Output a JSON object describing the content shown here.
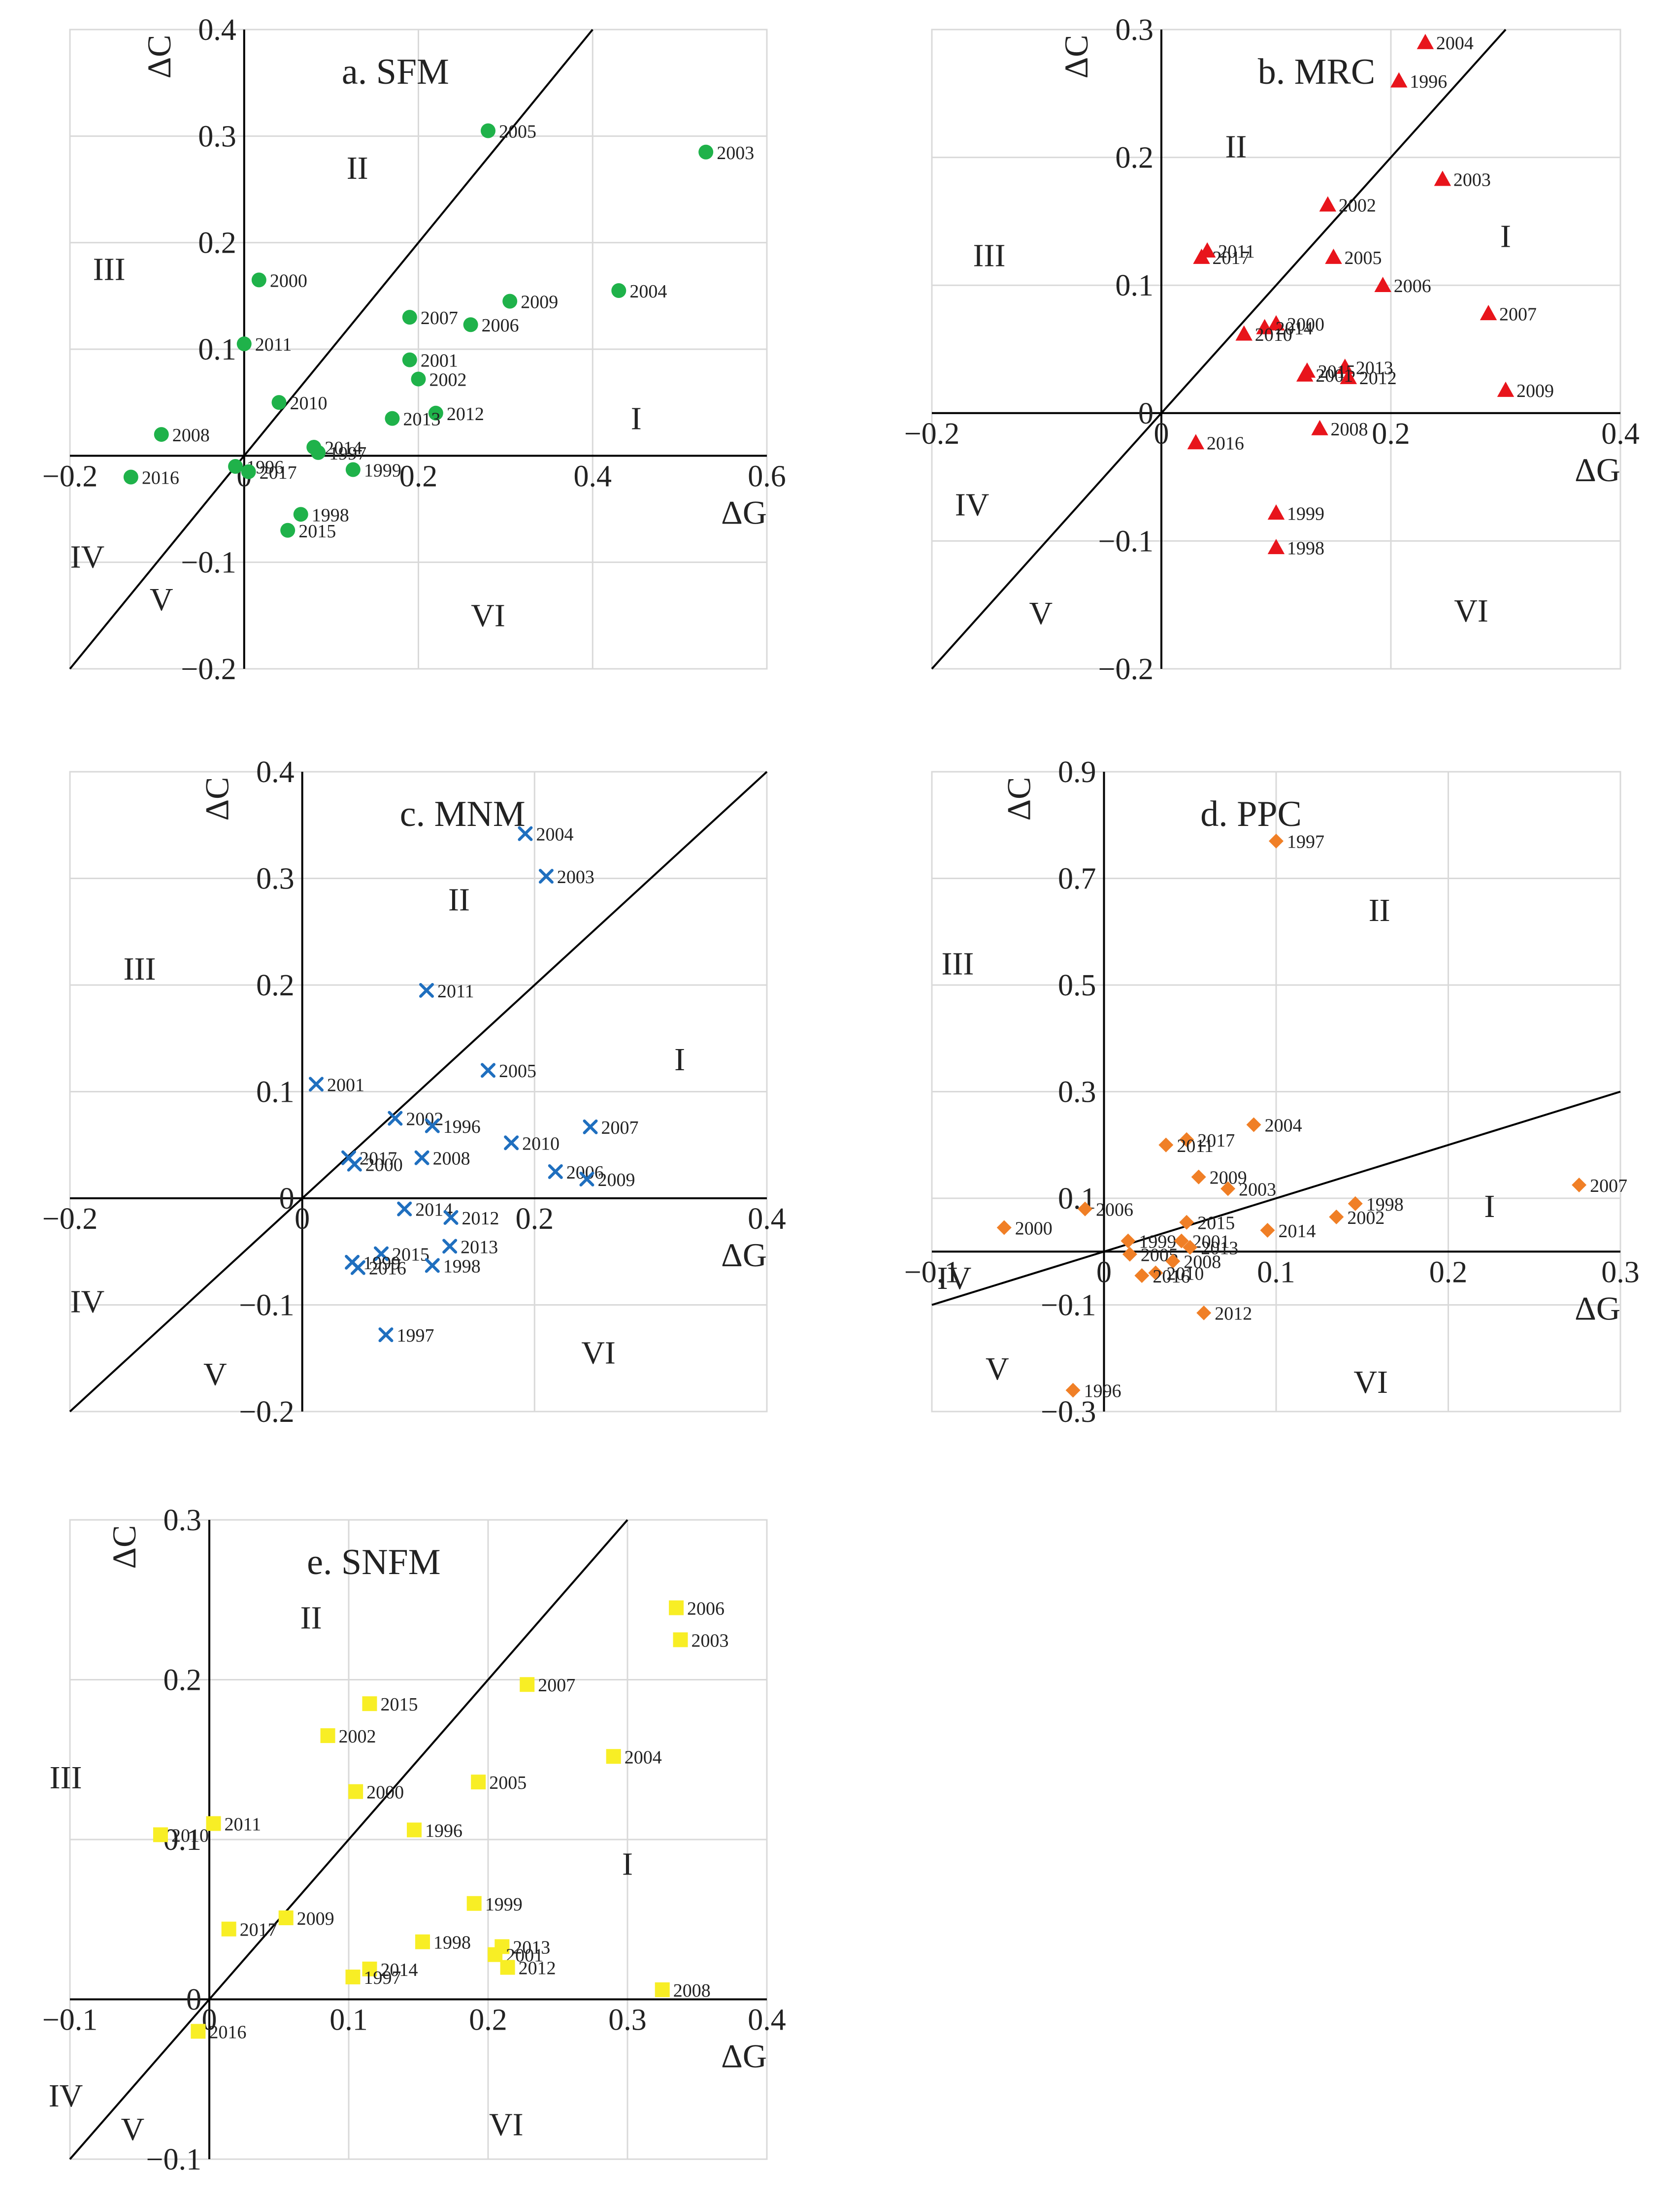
{
  "chart_data": [
    {
      "id": "a",
      "type": "scatter",
      "title": "a. SFM",
      "xlabel": "ΔG",
      "ylabel": "ΔC",
      "xlim": [
        -0.2,
        0.6
      ],
      "ylim": [
        -0.2,
        0.4
      ],
      "xticks": [
        -0.2,
        0,
        0.2,
        0.4,
        0.6
      ],
      "xtick_labels": [
        "−0.2",
        "0",
        "0.2",
        "0.4",
        "0.6"
      ],
      "yticks": [
        -0.2,
        -0.1,
        0.1,
        0.2,
        0.3,
        0.4
      ],
      "ytick_labels": [
        "−0.2",
        "−0.1",
        "0.1",
        "0.2",
        "0.3",
        "0.4"
      ],
      "grid": true,
      "marker": "circle",
      "color": "#1fb24a",
      "diagonal_slope": 1,
      "quadrants": [
        {
          "label": "I",
          "x": 0.45,
          "y": 0.025
        },
        {
          "label": "II",
          "x": 0.13,
          "y": 0.26
        },
        {
          "label": "III",
          "x": -0.155,
          "y": 0.165
        },
        {
          "label": "IV",
          "x": -0.18,
          "y": -0.105
        },
        {
          "label": "V",
          "x": -0.095,
          "y": -0.145
        },
        {
          "label": "VI",
          "x": 0.28,
          "y": -0.16
        }
      ],
      "points": [
        {
          "year": "2003",
          "x": 0.53,
          "y": 0.285
        },
        {
          "year": "2005",
          "x": 0.28,
          "y": 0.305
        },
        {
          "year": "2000",
          "x": 0.017,
          "y": 0.165
        },
        {
          "year": "2011",
          "x": 0.0,
          "y": 0.105
        },
        {
          "year": "2004",
          "x": 0.43,
          "y": 0.155
        },
        {
          "year": "2009",
          "x": 0.305,
          "y": 0.145
        },
        {
          "year": "2007",
          "x": 0.19,
          "y": 0.13
        },
        {
          "year": "2006",
          "x": 0.26,
          "y": 0.123
        },
        {
          "year": "2001",
          "x": 0.19,
          "y": 0.09
        },
        {
          "year": "2002",
          "x": 0.2,
          "y": 0.072
        },
        {
          "year": "2010",
          "x": 0.04,
          "y": 0.05
        },
        {
          "year": "2012",
          "x": 0.22,
          "y": 0.04
        },
        {
          "year": "2013",
          "x": 0.17,
          "y": 0.035
        },
        {
          "year": "2008",
          "x": -0.095,
          "y": 0.02
        },
        {
          "year": "2014",
          "x": 0.08,
          "y": 0.008
        },
        {
          "year": "1997",
          "x": 0.085,
          "y": 0.003
        },
        {
          "year": "1996",
          "x": -0.01,
          "y": -0.01
        },
        {
          "year": "2017",
          "x": 0.005,
          "y": -0.015
        },
        {
          "year": "1999",
          "x": 0.125,
          "y": -0.013
        },
        {
          "year": "2016",
          "x": -0.13,
          "y": -0.02
        },
        {
          "year": "1998",
          "x": 0.065,
          "y": -0.055
        },
        {
          "year": "2015",
          "x": 0.05,
          "y": -0.07
        }
      ]
    },
    {
      "id": "b",
      "type": "scatter",
      "title": "b. MRC",
      "xlabel": "ΔG",
      "ylabel": "ΔC",
      "xlim": [
        -0.2,
        0.4
      ],
      "ylim": [
        -0.2,
        0.3
      ],
      "xticks": [
        -0.2,
        0,
        0.2,
        0.4
      ],
      "xtick_labels": [
        "−0.2",
        "0",
        "0.2",
        "0.4"
      ],
      "yticks": [
        -0.2,
        -0.1,
        0,
        0.1,
        0.2,
        0.3
      ],
      "ytick_labels": [
        "−0.2",
        "−0.1",
        "0",
        "0.1",
        "0.2",
        "0.3"
      ],
      "grid": true,
      "marker": "triangle",
      "color": "#e8141b",
      "diagonal_slope": 1,
      "quadrants": [
        {
          "label": "I",
          "x": 0.3,
          "y": 0.13
        },
        {
          "label": "II",
          "x": 0.065,
          "y": 0.2
        },
        {
          "label": "III",
          "x": -0.15,
          "y": 0.115
        },
        {
          "label": "IV",
          "x": -0.165,
          "y": -0.08
        },
        {
          "label": "V",
          "x": -0.105,
          "y": -0.165
        },
        {
          "label": "VI",
          "x": 0.27,
          "y": -0.163
        }
      ],
      "points": [
        {
          "year": "2004",
          "x": 0.23,
          "y": 0.29
        },
        {
          "year": "1996",
          "x": 0.207,
          "y": 0.26
        },
        {
          "year": "2003",
          "x": 0.245,
          "y": 0.183
        },
        {
          "year": "2002",
          "x": 0.145,
          "y": 0.163
        },
        {
          "year": "2011",
          "x": 0.04,
          "y": 0.127
        },
        {
          "year": "2017",
          "x": 0.035,
          "y": 0.122
        },
        {
          "year": "2005",
          "x": 0.15,
          "y": 0.122
        },
        {
          "year": "2006",
          "x": 0.193,
          "y": 0.1
        },
        {
          "year": "2007",
          "x": 0.285,
          "y": 0.078
        },
        {
          "year": "2000",
          "x": 0.1,
          "y": 0.07
        },
        {
          "year": "2014",
          "x": 0.09,
          "y": 0.067
        },
        {
          "year": "2010",
          "x": 0.072,
          "y": 0.062
        },
        {
          "year": "2013",
          "x": 0.16,
          "y": 0.036
        },
        {
          "year": "2015",
          "x": 0.127,
          "y": 0.033
        },
        {
          "year": "2012",
          "x": 0.163,
          "y": 0.028
        },
        {
          "year": "2001",
          "x": 0.125,
          "y": 0.03
        },
        {
          "year": "2009",
          "x": 0.3,
          "y": 0.018
        },
        {
          "year": "2008",
          "x": 0.138,
          "y": -0.012
        },
        {
          "year": "2016",
          "x": 0.03,
          "y": -0.023
        },
        {
          "year": "1999",
          "x": 0.1,
          "y": -0.078
        },
        {
          "year": "1998",
          "x": 0.1,
          "y": -0.105
        }
      ]
    },
    {
      "id": "c",
      "type": "scatter",
      "title": "c. MNM",
      "xlabel": "ΔG",
      "ylabel": "ΔC",
      "xlim": [
        -0.2,
        0.4
      ],
      "ylim": [
        -0.2,
        0.4
      ],
      "xticks": [
        -0.2,
        0,
        0.2,
        0.4
      ],
      "xtick_labels": [
        "−0.2",
        "0",
        "0.2",
        "0.4"
      ],
      "yticks": [
        -0.2,
        -0.1,
        0,
        0.1,
        0.2,
        0.3,
        0.4
      ],
      "ytick_labels": [
        "−0.2",
        "−0.1",
        "0",
        "0.1",
        "0.2",
        "0.3",
        "0.4"
      ],
      "grid": true,
      "marker": "cross",
      "color": "#1f6fbf",
      "diagonal_slope": 1,
      "quadrants": [
        {
          "label": "I",
          "x": 0.325,
          "y": 0.12
        },
        {
          "label": "II",
          "x": 0.135,
          "y": 0.27
        },
        {
          "label": "III",
          "x": -0.14,
          "y": 0.205
        },
        {
          "label": "IV",
          "x": -0.185,
          "y": -0.107
        },
        {
          "label": "V",
          "x": -0.075,
          "y": -0.175
        },
        {
          "label": "VI",
          "x": 0.255,
          "y": -0.155
        }
      ],
      "points": [
        {
          "year": "2004",
          "x": 0.192,
          "y": 0.342
        },
        {
          "year": "2003",
          "x": 0.21,
          "y": 0.302
        },
        {
          "year": "2011",
          "x": 0.107,
          "y": 0.195
        },
        {
          "year": "2005",
          "x": 0.16,
          "y": 0.12
        },
        {
          "year": "2001",
          "x": 0.012,
          "y": 0.107
        },
        {
          "year": "2002",
          "x": 0.08,
          "y": 0.075
        },
        {
          "year": "1996",
          "x": 0.112,
          "y": 0.068
        },
        {
          "year": "2007",
          "x": 0.248,
          "y": 0.067
        },
        {
          "year": "2010",
          "x": 0.18,
          "y": 0.052
        },
        {
          "year": "2017",
          "x": 0.04,
          "y": 0.038
        },
        {
          "year": "2008",
          "x": 0.103,
          "y": 0.038
        },
        {
          "year": "2000",
          "x": 0.045,
          "y": 0.032
        },
        {
          "year": "2006",
          "x": 0.218,
          "y": 0.025
        },
        {
          "year": "2009",
          "x": 0.245,
          "y": 0.018
        },
        {
          "year": "2014",
          "x": 0.088,
          "y": -0.01
        },
        {
          "year": "2012",
          "x": 0.128,
          "y": -0.018
        },
        {
          "year": "2013",
          "x": 0.127,
          "y": -0.045
        },
        {
          "year": "2015",
          "x": 0.068,
          "y": -0.052
        },
        {
          "year": "1999",
          "x": 0.043,
          "y": -0.06
        },
        {
          "year": "2016",
          "x": 0.048,
          "y": -0.065
        },
        {
          "year": "1998",
          "x": 0.112,
          "y": -0.063
        },
        {
          "year": "1997",
          "x": 0.072,
          "y": -0.128
        }
      ]
    },
    {
      "id": "d",
      "type": "scatter",
      "title": "d. PPC",
      "xlabel": "ΔG",
      "ylabel": "ΔC",
      "xlim": [
        -0.1,
        0.3
      ],
      "ylim": [
        -0.3,
        0.9
      ],
      "xticks": [
        -0.1,
        0,
        0.1,
        0.2,
        0.3
      ],
      "xtick_labels": [
        "−0.1",
        "0",
        "0.1",
        "0.2",
        "0.3"
      ],
      "yticks": [
        -0.3,
        -0.1,
        0.1,
        0.3,
        0.5,
        0.7,
        0.9
      ],
      "ytick_labels": [
        "−0.3",
        "−0.1",
        "0.1",
        "0.3",
        "0.5",
        "0.7",
        "0.9"
      ],
      "grid": true,
      "marker": "diamond",
      "color": "#f07f26",
      "diagonal_slope": 1,
      "quadrants": [
        {
          "label": "I",
          "x": 0.224,
          "y": 0.065
        },
        {
          "label": "II",
          "x": 0.16,
          "y": 0.62
        },
        {
          "label": "III",
          "x": -0.085,
          "y": 0.52
        },
        {
          "label": "IV",
          "x": -0.087,
          "y": -0.07
        },
        {
          "label": "V",
          "x": -0.062,
          "y": -0.24
        },
        {
          "label": "VI",
          "x": 0.155,
          "y": -0.265
        }
      ],
      "points": [
        {
          "year": "1997",
          "x": 0.1,
          "y": 0.77
        },
        {
          "year": "2004",
          "x": 0.087,
          "y": 0.238
        },
        {
          "year": "2017",
          "x": 0.048,
          "y": 0.21
        },
        {
          "year": "2011",
          "x": 0.036,
          "y": 0.2
        },
        {
          "year": "2009",
          "x": 0.055,
          "y": 0.14
        },
        {
          "year": "2003",
          "x": 0.072,
          "y": 0.118
        },
        {
          "year": "2007",
          "x": 0.276,
          "y": 0.125
        },
        {
          "year": "1998",
          "x": 0.146,
          "y": 0.09
        },
        {
          "year": "2006",
          "x": -0.011,
          "y": 0.08
        },
        {
          "year": "2015",
          "x": 0.048,
          "y": 0.055
        },
        {
          "year": "2002",
          "x": 0.135,
          "y": 0.065
        },
        {
          "year": "2000",
          "x": -0.058,
          "y": 0.045
        },
        {
          "year": "2014",
          "x": 0.095,
          "y": 0.04
        },
        {
          "year": "1999",
          "x": 0.014,
          "y": 0.02
        },
        {
          "year": "2001",
          "x": 0.045,
          "y": 0.02
        },
        {
          "year": "2013",
          "x": 0.05,
          "y": 0.008
        },
        {
          "year": "2005",
          "x": 0.015,
          "y": -0.005
        },
        {
          "year": "2008",
          "x": 0.04,
          "y": -0.018
        },
        {
          "year": "2010",
          "x": 0.03,
          "y": -0.04
        },
        {
          "year": "2016",
          "x": 0.022,
          "y": -0.045
        },
        {
          "year": "2012",
          "x": 0.058,
          "y": -0.115
        },
        {
          "year": "1996",
          "x": -0.018,
          "y": -0.26
        }
      ]
    },
    {
      "id": "e",
      "type": "scatter",
      "title": "e. SNFM",
      "xlabel": "ΔG",
      "ylabel": "ΔC",
      "xlim": [
        -0.1,
        0.4
      ],
      "ylim": [
        -0.1,
        0.3
      ],
      "xticks": [
        -0.1,
        0,
        0.1,
        0.2,
        0.3,
        0.4
      ],
      "xtick_labels": [
        "−0.1",
        "0",
        "0.1",
        "0.2",
        "0.3",
        "0.4"
      ],
      "yticks": [
        -0.1,
        0,
        0.1,
        0.2,
        0.3
      ],
      "ytick_labels": [
        "−0.1",
        "0",
        "0.1",
        "0.2",
        "0.3"
      ],
      "grid": true,
      "marker": "square",
      "color": "#f8ee25",
      "diagonal_slope": 1,
      "quadrants": [
        {
          "label": "I",
          "x": 0.3,
          "y": 0.078
        },
        {
          "label": "II",
          "x": 0.073,
          "y": 0.232
        },
        {
          "label": "III",
          "x": -0.103,
          "y": 0.132
        },
        {
          "label": "IV",
          "x": -0.103,
          "y": -0.067
        },
        {
          "label": "V",
          "x": -0.055,
          "y": -0.088
        },
        {
          "label": "VI",
          "x": 0.213,
          "y": -0.085
        }
      ],
      "points": [
        {
          "year": "2006",
          "x": 0.335,
          "y": 0.245
        },
        {
          "year": "2003",
          "x": 0.338,
          "y": 0.225
        },
        {
          "year": "2007",
          "x": 0.228,
          "y": 0.197
        },
        {
          "year": "2015",
          "x": 0.115,
          "y": 0.185
        },
        {
          "year": "2002",
          "x": 0.085,
          "y": 0.165
        },
        {
          "year": "2004",
          "x": 0.29,
          "y": 0.152
        },
        {
          "year": "2005",
          "x": 0.193,
          "y": 0.136
        },
        {
          "year": "2000",
          "x": 0.105,
          "y": 0.13
        },
        {
          "year": "2011",
          "x": 0.003,
          "y": 0.11
        },
        {
          "year": "2010",
          "x": -0.035,
          "y": 0.103
        },
        {
          "year": "1996",
          "x": 0.147,
          "y": 0.106
        },
        {
          "year": "1999",
          "x": 0.19,
          "y": 0.06
        },
        {
          "year": "2009",
          "x": 0.055,
          "y": 0.051
        },
        {
          "year": "2017",
          "x": 0.014,
          "y": 0.044
        },
        {
          "year": "1998",
          "x": 0.153,
          "y": 0.036
        },
        {
          "year": "2013",
          "x": 0.21,
          "y": 0.033
        },
        {
          "year": "2001",
          "x": 0.205,
          "y": 0.028
        },
        {
          "year": "2012",
          "x": 0.214,
          "y": 0.02
        },
        {
          "year": "2014",
          "x": 0.115,
          "y": 0.019
        },
        {
          "year": "1997",
          "x": 0.103,
          "y": 0.014
        },
        {
          "year": "2008",
          "x": 0.325,
          "y": 0.006
        },
        {
          "year": "2016",
          "x": -0.008,
          "y": -0.02
        }
      ]
    }
  ]
}
